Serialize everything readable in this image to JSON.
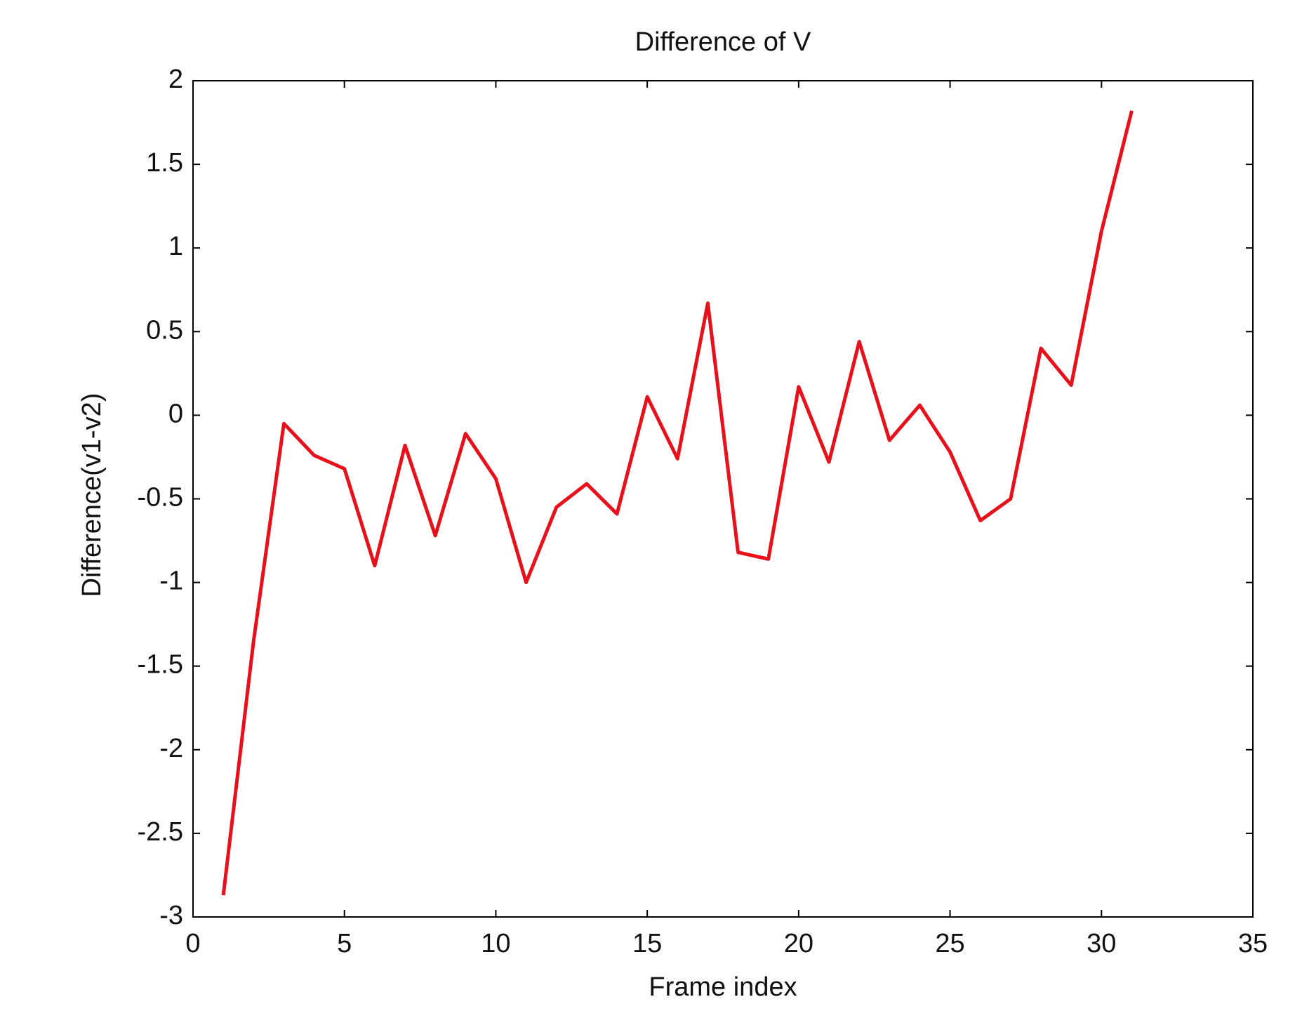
{
  "chart_data": {
    "type": "line",
    "title": "Difference of V",
    "xlabel": "Frame index",
    "ylabel": "Difference(v1-v2)",
    "x": [
      1,
      2,
      3,
      4,
      5,
      6,
      7,
      8,
      9,
      10,
      11,
      12,
      13,
      14,
      15,
      16,
      17,
      18,
      19,
      20,
      21,
      22,
      23,
      24,
      25,
      26,
      27,
      28,
      29,
      30,
      31
    ],
    "series": [
      {
        "color": "#e8101a",
        "values": [
          -2.87,
          -1.35,
          -0.05,
          -0.24,
          -0.32,
          -0.9,
          -0.18,
          -0.72,
          -0.11,
          -0.38,
          -1.0,
          -0.55,
          -0.41,
          -0.59,
          0.11,
          -0.26,
          0.67,
          -0.82,
          -0.86,
          0.17,
          -0.28,
          0.44,
          -0.15,
          0.06,
          -0.22,
          -0.63,
          -0.5,
          0.4,
          0.18,
          1.1,
          1.82
        ]
      }
    ],
    "xlim": [
      0,
      35
    ],
    "xticks": [
      0,
      5,
      10,
      15,
      20,
      25,
      30,
      35
    ],
    "ylim": [
      -3,
      2
    ],
    "yticks": [
      -3,
      -2.5,
      -2,
      -1.5,
      -1,
      -0.5,
      0,
      0.5,
      1,
      1.5,
      2
    ]
  }
}
